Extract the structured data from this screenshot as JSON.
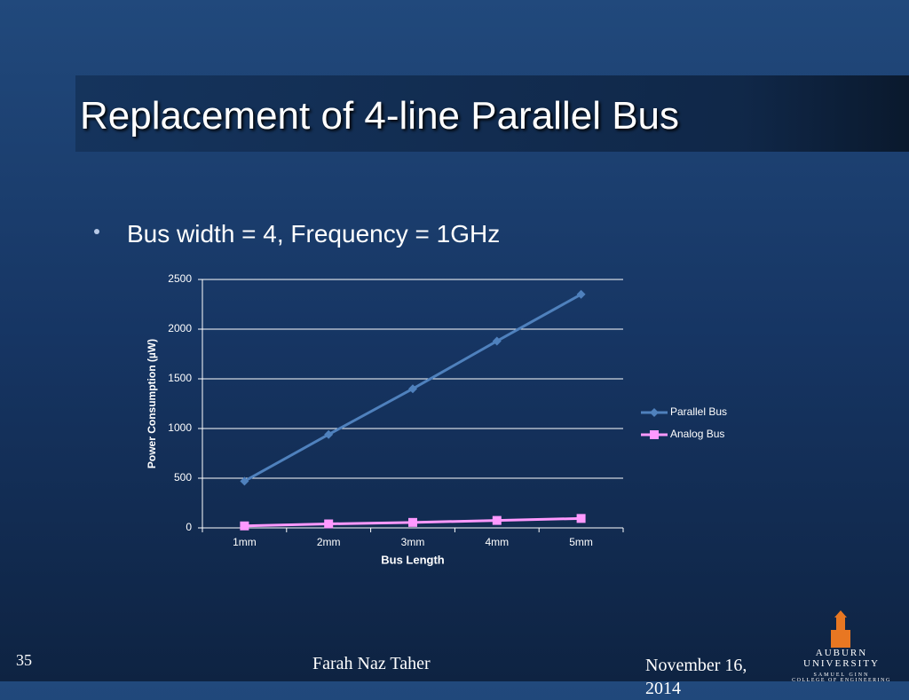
{
  "slide": {
    "title": "Replacement of 4-line Parallel Bus",
    "bullet": "Bus width = 4, Frequency = 1GHz",
    "page_number": "35",
    "author": "Farah Naz Taher",
    "date": "November 16, 2014",
    "logo": {
      "name": "AUBURN UNIVERSITY",
      "line1": "SAMUEL GINN",
      "line2": "COLLEGE OF ENGINEERING"
    }
  },
  "chart_data": {
    "type": "line",
    "x_label": "Bus Length",
    "y_label": "Power Consumption (µW)",
    "categories": [
      "1mm",
      "2mm",
      "3mm",
      "4mm",
      "5mm"
    ],
    "series": [
      {
        "name": "Parallel Bus",
        "color": "#4f81bd",
        "marker": "diamond",
        "values": [
          470,
          940,
          1400,
          1880,
          2350
        ]
      },
      {
        "name": "Analog Bus",
        "color": "#ff99ff",
        "marker": "square",
        "values": [
          20,
          40,
          55,
          75,
          95
        ]
      }
    ],
    "ylim": [
      0,
      2500
    ],
    "yticks": [
      0,
      500,
      1000,
      1500,
      2000,
      2500
    ],
    "grid": true,
    "legend": "right"
  }
}
